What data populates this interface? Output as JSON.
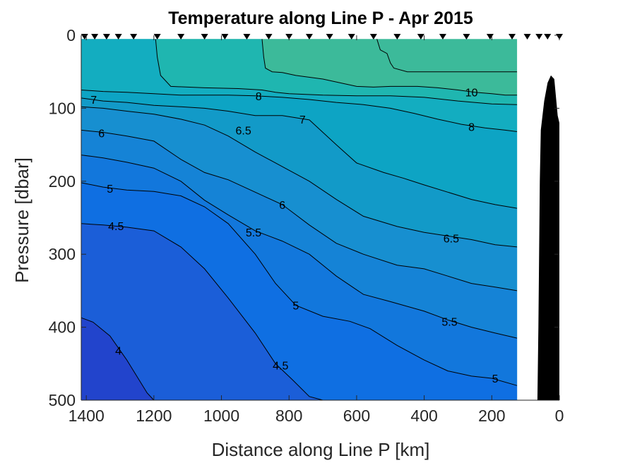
{
  "chart_data": {
    "type": "contour",
    "title": "Temperature along Line P - Apr 2015",
    "xlabel": "Distance along Line P [km]",
    "ylabel": "Pressure [dbar]",
    "xlim": [
      1415,
      0
    ],
    "ylim": [
      0,
      500
    ],
    "x_reversed": true,
    "y_reversed": true,
    "x_ticks": [
      1400,
      1200,
      1000,
      800,
      600,
      400,
      200,
      0
    ],
    "y_ticks": [
      0,
      100,
      200,
      300,
      400,
      500
    ],
    "data_extent_x": [
      1415,
      125
    ],
    "data_extent_y": [
      5,
      500
    ],
    "station_markers_km": [
      1405,
      1375,
      1340,
      1305,
      1260,
      1190,
      1120,
      1050,
      990,
      925,
      860,
      800,
      740,
      680,
      615,
      550,
      480,
      410,
      345,
      275,
      205,
      140,
      95,
      60,
      35,
      0
    ],
    "fill_colors": {
      "below_4": "#2244cc",
      "4_to_4.5": "#1b5ed8",
      "4.5_to_5": "#0f6fe2",
      "5_to_5.5": "#1277dc",
      "5.5_to_6": "#1583d6",
      "6_to_6.5": "#178fd0",
      "6.5_to_7": "#129ac8",
      "7_to_8": "#0da4c4",
      "8_to_9": "#13adc0",
      "9_to_10": "#1fb6b0",
      "above_10": "#3cba9a"
    },
    "contours": [
      {
        "level": 4,
        "label": "4",
        "points": [
          [
            1415,
            387
          ],
          [
            1380,
            393
          ],
          [
            1330,
            412
          ],
          [
            1280,
            445
          ],
          [
            1220,
            490
          ],
          [
            1200,
            500
          ]
        ]
      },
      {
        "level": 4.5,
        "label": "4.5",
        "points": [
          [
            1415,
            258
          ],
          [
            1350,
            260
          ],
          [
            1280,
            263
          ],
          [
            1200,
            268
          ],
          [
            1120,
            290
          ],
          [
            1050,
            320
          ],
          [
            980,
            360
          ],
          [
            900,
            408
          ],
          [
            840,
            450
          ],
          [
            790,
            472
          ],
          [
            740,
            495
          ],
          [
            700,
            500
          ]
        ]
      },
      {
        "level": 5,
        "label": "5",
        "points": [
          [
            1415,
            202
          ],
          [
            1350,
            208
          ],
          [
            1280,
            212
          ],
          [
            1200,
            214
          ],
          [
            1120,
            220
          ],
          [
            1050,
            235
          ],
          [
            980,
            258
          ],
          [
            900,
            300
          ],
          [
            840,
            340
          ],
          [
            780,
            370
          ],
          [
            700,
            385
          ],
          [
            620,
            392
          ],
          [
            560,
            402
          ],
          [
            480,
            425
          ],
          [
            400,
            445
          ],
          [
            330,
            460
          ],
          [
            260,
            467
          ],
          [
            200,
            470
          ],
          [
            125,
            480
          ]
        ]
      },
      {
        "level": 5.5,
        "label": "5.5",
        "points": [
          [
            1415,
            164
          ],
          [
            1350,
            168
          ],
          [
            1280,
            174
          ],
          [
            1200,
            182
          ],
          [
            1120,
            200
          ],
          [
            1050,
            226
          ],
          [
            980,
            246
          ],
          [
            900,
            268
          ],
          [
            820,
            282
          ],
          [
            740,
            300
          ],
          [
            660,
            330
          ],
          [
            580,
            355
          ],
          [
            500,
            365
          ],
          [
            400,
            378
          ],
          [
            330,
            390
          ],
          [
            260,
            400
          ],
          [
            190,
            408
          ],
          [
            125,
            415
          ]
        ]
      },
      {
        "level": 6,
        "label": "6",
        "points": [
          [
            1415,
            130
          ],
          [
            1350,
            133
          ],
          [
            1280,
            138
          ],
          [
            1200,
            145
          ],
          [
            1120,
            170
          ],
          [
            1050,
            188
          ],
          [
            980,
            198
          ],
          [
            900,
            215
          ],
          [
            820,
            232
          ],
          [
            740,
            260
          ],
          [
            660,
            285
          ],
          [
            580,
            300
          ],
          [
            480,
            315
          ],
          [
            400,
            320
          ],
          [
            330,
            330
          ],
          [
            260,
            340
          ],
          [
            190,
            345
          ],
          [
            125,
            350
          ]
        ]
      },
      {
        "level": 6.5,
        "label": "6.5",
        "points": [
          [
            1415,
            98
          ],
          [
            1350,
            100
          ],
          [
            1280,
            104
          ],
          [
            1200,
            108
          ],
          [
            1120,
            115
          ],
          [
            1050,
            123
          ],
          [
            980,
            138
          ],
          [
            900,
            160
          ],
          [
            820,
            180
          ],
          [
            740,
            200
          ],
          [
            660,
            225
          ],
          [
            580,
            248
          ],
          [
            480,
            262
          ],
          [
            400,
            270
          ],
          [
            330,
            275
          ],
          [
            260,
            280
          ],
          [
            190,
            287
          ],
          [
            125,
            290
          ]
        ]
      },
      {
        "level": 7,
        "label": "7",
        "points": [
          [
            1415,
            86
          ],
          [
            1350,
            90
          ],
          [
            1280,
            92
          ],
          [
            1200,
            96
          ],
          [
            1120,
            98
          ],
          [
            1050,
            100
          ],
          [
            980,
            104
          ],
          [
            900,
            110
          ],
          [
            820,
            110
          ],
          [
            740,
            116
          ],
          [
            660,
            150
          ],
          [
            600,
            175
          ],
          [
            520,
            188
          ],
          [
            460,
            196
          ],
          [
            400,
            205
          ],
          [
            330,
            215
          ],
          [
            260,
            225
          ],
          [
            190,
            232
          ],
          [
            125,
            237
          ]
        ]
      },
      {
        "level": 8,
        "label": "8",
        "points": [
          [
            1415,
            75
          ],
          [
            1350,
            77
          ],
          [
            1280,
            78
          ],
          [
            1200,
            80
          ],
          [
            1120,
            82
          ],
          [
            1050,
            82
          ],
          [
            980,
            82
          ],
          [
            900,
            83
          ],
          [
            820,
            85
          ],
          [
            740,
            88
          ],
          [
            660,
            92
          ],
          [
            580,
            95
          ],
          [
            500,
            100
          ],
          [
            430,
            107
          ],
          [
            360,
            115
          ],
          [
            290,
            122
          ],
          [
            220,
            127
          ],
          [
            160,
            130
          ],
          [
            125,
            132
          ]
        ]
      },
      {
        "level": 9,
        "label": "",
        "points": [
          [
            1195,
            5
          ],
          [
            1190,
            30
          ],
          [
            1180,
            55
          ],
          [
            1150,
            70
          ],
          [
            1050,
            72
          ],
          [
            950,
            73
          ],
          [
            880,
            75
          ],
          [
            840,
            78
          ],
          [
            800,
            80
          ],
          [
            700,
            82
          ],
          [
            600,
            83
          ],
          [
            500,
            83
          ],
          [
            400,
            85
          ],
          [
            300,
            90
          ],
          [
            200,
            94
          ],
          [
            125,
            95
          ]
        ]
      },
      {
        "level": 10,
        "label": "10",
        "points": [
          [
            880,
            5
          ],
          [
            875,
            30
          ],
          [
            870,
            45
          ],
          [
            850,
            50
          ],
          [
            820,
            51
          ],
          [
            780,
            55
          ],
          [
            700,
            60
          ],
          [
            640,
            66
          ],
          [
            600,
            70
          ],
          [
            550,
            71
          ],
          [
            500,
            70
          ],
          [
            420,
            70
          ],
          [
            360,
            72
          ],
          [
            300,
            75
          ],
          [
            250,
            78
          ],
          [
            200,
            80
          ],
          [
            160,
            82
          ],
          [
            125,
            82
          ]
        ]
      },
      {
        "level": 10.5,
        "label": "",
        "points": [
          [
            540,
            5
          ],
          [
            530,
            20
          ],
          [
            510,
            25
          ],
          [
            500,
            38
          ],
          [
            490,
            45
          ],
          [
            450,
            50
          ],
          [
            400,
            50
          ],
          [
            350,
            50
          ],
          [
            300,
            50
          ],
          [
            250,
            50
          ],
          [
            200,
            50
          ],
          [
            125,
            50
          ]
        ]
      }
    ],
    "contour_label_positions": [
      {
        "label": "4",
        "x": 1305,
        "y": 432
      },
      {
        "label": "4.5",
        "x": 1312,
        "y": 261
      },
      {
        "label": "4.5",
        "x": 825,
        "y": 452
      },
      {
        "label": "5",
        "x": 1330,
        "y": 210
      },
      {
        "label": "5",
        "x": 780,
        "y": 370
      },
      {
        "label": "5",
        "x": 190,
        "y": 470
      },
      {
        "label": "5.5",
        "x": 905,
        "y": 270
      },
      {
        "label": "5.5",
        "x": 325,
        "y": 392
      },
      {
        "label": "6",
        "x": 1355,
        "y": 134
      },
      {
        "label": "6",
        "x": 820,
        "y": 232
      },
      {
        "label": "6.5",
        "x": 935,
        "y": 130
      },
      {
        "label": "6.5",
        "x": 320,
        "y": 278
      },
      {
        "label": "7",
        "x": 1378,
        "y": 88
      },
      {
        "label": "7",
        "x": 760,
        "y": 115
      },
      {
        "label": "8",
        "x": 890,
        "y": 83
      },
      {
        "label": "8",
        "x": 260,
        "y": 125
      },
      {
        "label": "10",
        "x": 260,
        "y": 78
      }
    ],
    "bathymetry_color": "#000000",
    "bathymetry_profile": [
      [
        65,
        500
      ],
      [
        62,
        400
      ],
      [
        60,
        300
      ],
      [
        58,
        200
      ],
      [
        55,
        130
      ],
      [
        45,
        90
      ],
      [
        35,
        65
      ],
      [
        25,
        55
      ],
      [
        15,
        60
      ],
      [
        5,
        110
      ],
      [
        0,
        120
      ],
      [
        0,
        500
      ]
    ],
    "grid": false
  }
}
